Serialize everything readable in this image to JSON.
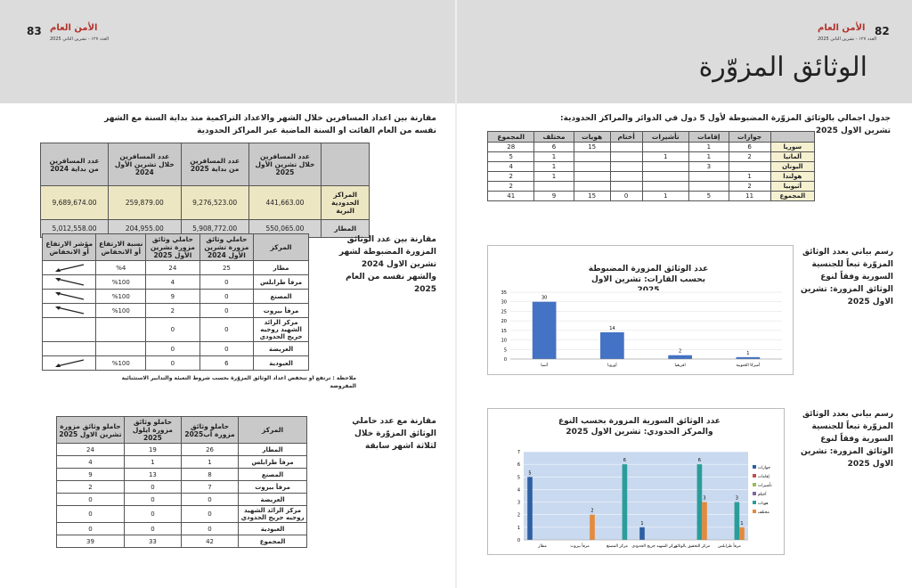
{
  "header": {
    "left": {
      "page": "83",
      "brand": "الأمن العام",
      "issue": "العدد ١٢٧ - تشرين الثاني 2025"
    },
    "right": {
      "page": "82",
      "brand": "الأمن العام",
      "issue": "العدد ١٢٧ - تشرين الثاني 2025"
    }
  },
  "title": "الوثائق المزوّرة",
  "right_page": {
    "countries_table": {
      "caption": "جدول اجمالي بالوثائق المزوّرة المضبوطة لأول 5 دول في الدوائر والمراكز الحدودية: تشرين الاول 2025",
      "columns": [
        null,
        "جوازات",
        "إقامات",
        "تأشيرات",
        "أختام",
        "هويات",
        "مختلف",
        "المجموع"
      ],
      "rows": [
        [
          "سوريا",
          "6",
          "1",
          null,
          null,
          "15",
          "6",
          "28"
        ],
        [
          "ألمانيا",
          "2",
          "1",
          "1",
          null,
          null,
          "1",
          "5"
        ],
        [
          "اليونان",
          null,
          "3",
          null,
          null,
          null,
          "1",
          "4"
        ],
        [
          "هولندا",
          "1",
          null,
          null,
          null,
          null,
          "1",
          "2"
        ],
        [
          "أثيوبيا",
          "2",
          null,
          null,
          null,
          null,
          null,
          "2"
        ],
        [
          "المجموع",
          "11",
          "5",
          "1",
          "0",
          "15",
          "9",
          "41"
        ]
      ]
    },
    "continents_description": "رسم بياني بعدد الوثائق المزوّرة تبعاً للجنسية السورية وفقاً لنوع الوثائق المزورة: تشرين الاول 2025",
    "syrian_description": "رسم بياني بعدد الوثائق المزوّرة تبعاً للجنسية السورية وفقاً لنوع الوثائق المزورة: تشرين الاول 2025"
  },
  "chart_data": [
    {
      "type": "bar",
      "title": "عدد الوثائق المزورة المضبوطة بحسب القارات: تشرين الاول 2025",
      "categories": [
        "آسيا",
        "أوروبا",
        "افريقيا",
        "أميركا الجنوبية"
      ],
      "values": [
        30,
        14,
        2,
        1
      ],
      "color": "#4472c4",
      "ylim": [
        0,
        35
      ],
      "yticks": [
        0,
        5,
        10,
        15,
        20,
        25,
        30,
        35
      ],
      "grid": true
    },
    {
      "type": "bar",
      "title": "عدد الوثائق السورية المزورة بحسب النوع والمركز الحدودي: تشرين الاول 2025",
      "categories": [
        "مطار",
        "مرفأ بيروت",
        "مركز المصنع",
        "مركز الشهيد جريج الحدودي",
        "مركز التحقيق بالوثائق",
        "مرفأ طرابلس"
      ],
      "series": [
        {
          "name": "جوازات",
          "color": "#2e5fa3",
          "values": [
            5,
            null,
            null,
            1,
            null,
            null
          ]
        },
        {
          "name": "إقامات",
          "color": "#c0504d",
          "values": [
            null,
            null,
            null,
            null,
            null,
            null
          ]
        },
        {
          "name": "تأشيرات",
          "color": "#9bbb59",
          "values": [
            null,
            null,
            null,
            null,
            null,
            null
          ]
        },
        {
          "name": "أختام",
          "color": "#8064a2",
          "values": [
            null,
            null,
            null,
            null,
            null,
            null
          ]
        },
        {
          "name": "هويات",
          "color": "#2a9d9a",
          "values": [
            null,
            null,
            6,
            null,
            6,
            3
          ]
        },
        {
          "name": "مختلف",
          "color": "#e38a3c",
          "values": [
            null,
            2,
            null,
            null,
            3,
            1
          ]
        }
      ],
      "ylim": [
        0,
        7
      ],
      "yticks": [
        0,
        1,
        2,
        3,
        4,
        5,
        6,
        7
      ],
      "grid": true,
      "legend": "right"
    }
  ],
  "left_page": {
    "travelers_intro": "مقارنة بين اعداد المسافرين خلال الشهر والاعداد التراكمية منذ بداية السنة مع الشهر نفسه من العام الفائت او السنة الماضية عبر المراكز الحدودية",
    "travelers_table": {
      "columns": [
        null,
        "عدد المسافرين خلال تشرين الأول 2025",
        "عدد المسافرين من بداية 2025",
        "عدد المسافرين خلال تشرين الأول 2024",
        "عدد المسافرين من بداية 2024"
      ],
      "rows": [
        [
          "المراكز الحدودية البرية",
          "441,663.00",
          "9,276,523.00",
          "259,879.00",
          "9,689,674.00"
        ],
        [
          "المطار",
          "550,065.00",
          "5,908,772.00",
          "204,955.00",
          "5,012,558.00"
        ]
      ]
    },
    "comparison_intro": "مقارنة بين عدد الوثائق المزورة المضبوطة لشهر تشرين الاول 2024 والشهر نفسه من العام 2025",
    "comparison_table": {
      "columns": [
        "المركز",
        "حاملي وثائق مزورة تشرين الأول 2024",
        "حاملي وثائق مزورة تشرين الأول 2025",
        "نسبة الارتفاع أو الانخفاض",
        "مؤشر الارتفاع أو الانخفاض"
      ],
      "rows": [
        [
          "مطار",
          "25",
          "24",
          "%4"
        ],
        [
          "مرفأ طرابلس",
          "0",
          "4",
          "%100"
        ],
        [
          "المصنع",
          "0",
          "9",
          "%100"
        ],
        [
          "مرفأ بيروت",
          "0",
          "2",
          "%100"
        ],
        [
          "مركز الرائد الشهيد روجيه جريج الحدودي",
          "0",
          "0",
          null
        ],
        [
          "العريضة",
          "0",
          "0",
          null
        ],
        [
          "العبودية",
          "6",
          "0",
          "%100"
        ]
      ]
    },
    "note": "ملاحظة : ترتفع او تنخفض اعداد الوثائق المزوّرة بحسب شروط التعبئة والتدابير الاستثنائية المفروضة",
    "quarter_intro": "مقارنة مع عدد حاملي الوثائق المزوّرة خلال لثلاثة اشهر سابقة",
    "quarter_table": {
      "columns": [
        "المركز",
        "حاملو وثائق مزورة آب2025",
        "حاملو وثائق مزورة ايلول 2025",
        "حاملو وثائق مزورة تشرين الاول 2025"
      ],
      "rows": [
        [
          "المطار",
          "26",
          "19",
          "24"
        ],
        [
          "مرفأ طرابلس",
          "1",
          "1",
          "4"
        ],
        [
          "المصنع",
          "8",
          "13",
          "9"
        ],
        [
          "مرفأ بيروت",
          "7",
          "0",
          "2"
        ],
        [
          "العريضة",
          "0",
          "0",
          "0"
        ],
        [
          "مركز الرائد الشهيد روجيه جريج الحدودي",
          "0",
          "0",
          "0"
        ],
        [
          "العبودية",
          "0",
          "0",
          "0"
        ],
        [
          "المجموع",
          "42",
          "33",
          "39"
        ]
      ]
    }
  }
}
